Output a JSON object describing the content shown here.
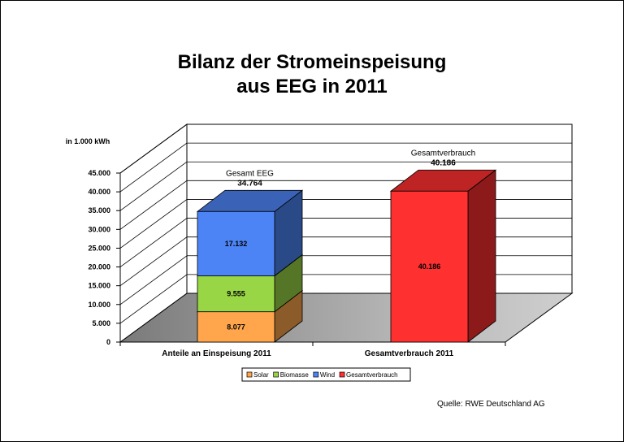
{
  "title_line1": "Bilanz der Stromeinspeisung",
  "title_line2": "aus EEG in 2011",
  "source": "Quelle: RWE Deutschland AG",
  "chart_data": {
    "type": "bar",
    "title": "Bilanz der Stromeinspeisung aus EEG in 2011",
    "ylabel": "in 1.000 kWh",
    "ylim": [
      0,
      45000
    ],
    "yticks": [
      0,
      5000,
      10000,
      15000,
      20000,
      25000,
      30000,
      35000,
      40000,
      45000
    ],
    "ytick_labels": [
      "0",
      "5.000",
      "10.000",
      "15.000",
      "20.000",
      "25.000",
      "30.000",
      "35.000",
      "40.000",
      "45.000"
    ],
    "categories": [
      "Anteile an Einspeisung 2011",
      "Gesamtverbrauch 2011"
    ],
    "stacked": true,
    "series": [
      {
        "name": "Solar",
        "values": [
          8077,
          null
        ],
        "labels": [
          "8.077",
          ""
        ],
        "color": "#ffa64d"
      },
      {
        "name": "Biomasse",
        "values": [
          9555,
          null
        ],
        "labels": [
          "9.555",
          ""
        ],
        "color": "#99d645"
      },
      {
        "name": "Wind",
        "values": [
          17132,
          null
        ],
        "labels": [
          "17.132",
          ""
        ],
        "color": "#4d84f5"
      },
      {
        "name": "Gesamtverbrauch",
        "values": [
          null,
          40186
        ],
        "labels": [
          "",
          "40.186"
        ],
        "color": "#ff3030"
      }
    ],
    "totals": [
      {
        "label": "Gesamt EEG",
        "value": "34.764",
        "category": 0
      },
      {
        "label": "Gesamtverbrauch",
        "value": "40.186",
        "category": 1
      }
    ],
    "legend_position": "bottom",
    "grid": true
  }
}
